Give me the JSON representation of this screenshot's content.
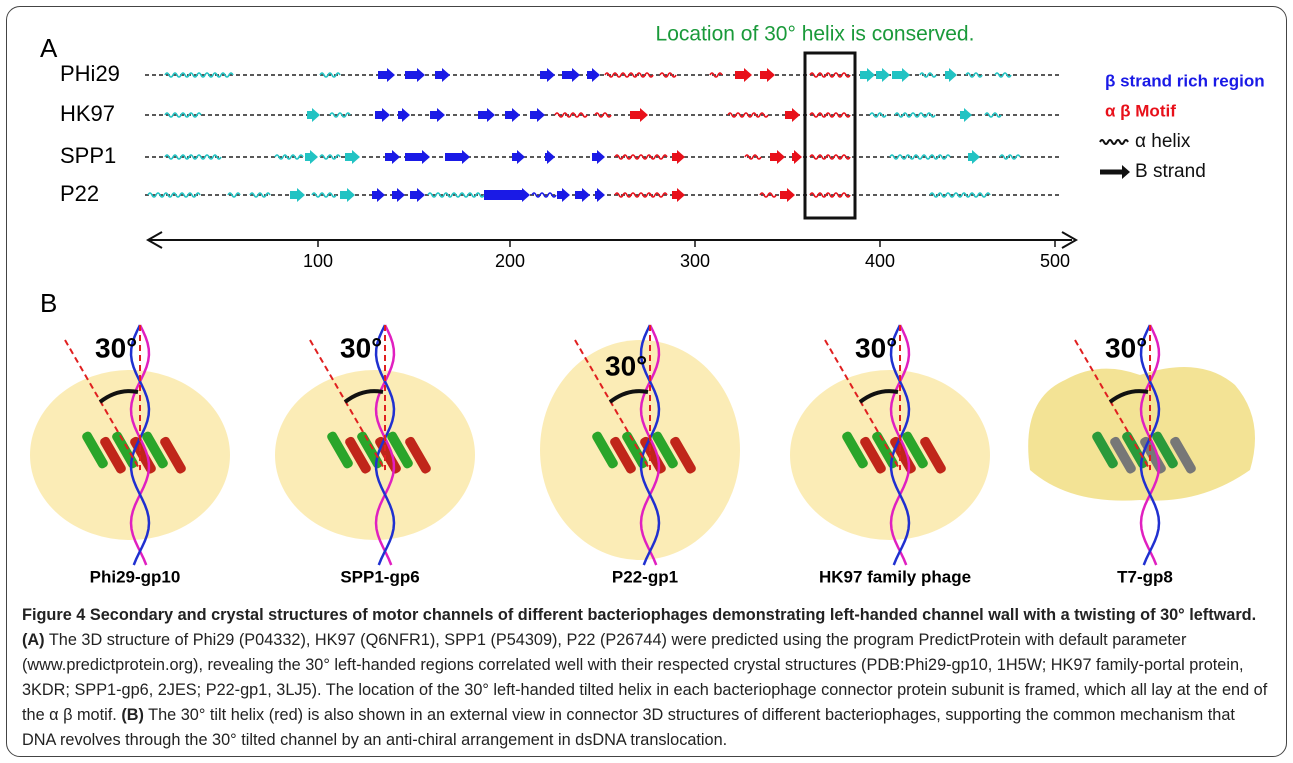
{
  "panel_a": {
    "label": "A",
    "frame_note": "Location of 30° helix is conserved.",
    "rows": [
      "PHi29",
      "HK97",
      "SPP1",
      "P22"
    ],
    "legend": [
      "β  strand rich region",
      "α  β   Motif",
      "α  helix",
      "B strand"
    ],
    "axis_ticks": [
      "100",
      "200",
      "300",
      "400",
      "500"
    ]
  },
  "panel_b": {
    "label": "B",
    "structures": [
      {
        "angle": "30°",
        "name": "Phi29-gp10"
      },
      {
        "angle": "30°",
        "name": "SPP1-gp6"
      },
      {
        "angle": "30°",
        "name": "P22-gp1"
      },
      {
        "angle": "30°",
        "name": "HK97 family phage"
      },
      {
        "angle": "30°",
        "name": "T7-gp8"
      }
    ]
  },
  "caption": {
    "title": "Figure 4 Secondary and crystal structures of motor channels of different bacteriophages demonstrating left-handed channel wall with a twisting of 30° leftward.",
    "a_tag": "(A)",
    "a_text": "The 3D structure of Phi29 (P04332), HK97 (Q6NFR1), SPP1 (P54309), P22 (P26744) were predicted using the program PredictProtein with default parameter (www.predictprotein.org), revealing the 30° left-handed regions correlated well with their respected crystal structures (PDB:Phi29-gp10, 1H5W; HK97 family-portal protein, 3KDR; SPP1-gp6, 2JES; P22-gp1, 3LJ5). The location of the 30° left-handed tilted helix in each bacteriophage connector protein subunit is framed, which all lay at the end of the α β motif.",
    "b_tag": "(B)",
    "b_text": "The 30° tilt helix (red) is also shown in an external view in connector 3D structures of different bacteriophages, supporting the common mechanism that DNA revolves through the 30° tilted channel by an anti-chiral arrangement in dsDNA translocation."
  }
}
